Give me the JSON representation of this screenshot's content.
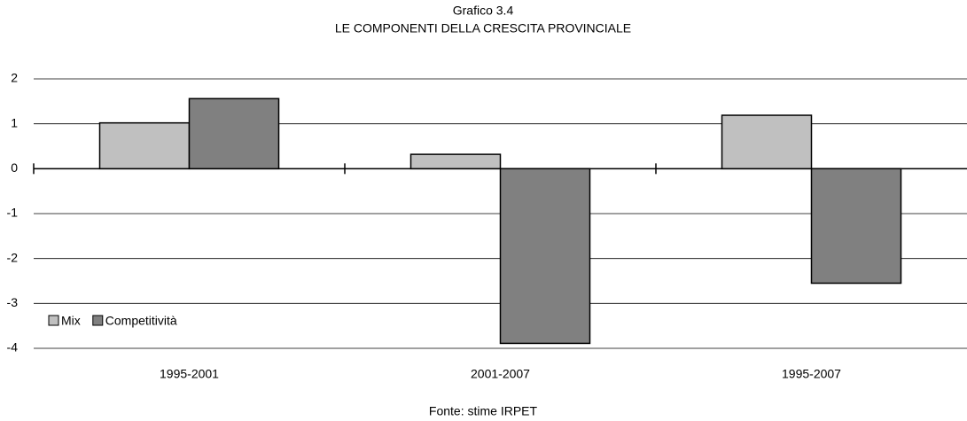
{
  "chart_data": {
    "type": "bar",
    "title": "Grafico 3.4",
    "subtitle": "LE COMPONENTI DELLA CRESCITA PROVINCIALE",
    "source": "Fonte: stime IRPET",
    "categories": [
      "1995-2001",
      "2001-2007",
      "1995-2007"
    ],
    "series": [
      {
        "name": "Mix",
        "color": "#c0c0c0",
        "values": [
          1.02,
          0.32,
          1.19
        ]
      },
      {
        "name": "Competitività",
        "color": "#808080",
        "values": [
          1.56,
          -3.89,
          -2.55
        ]
      }
    ],
    "ylim": [
      -4,
      2
    ],
    "yticks": [
      -4,
      -3,
      -2,
      -1,
      0,
      1,
      2
    ],
    "grid": true,
    "legend": "bottom-left"
  }
}
